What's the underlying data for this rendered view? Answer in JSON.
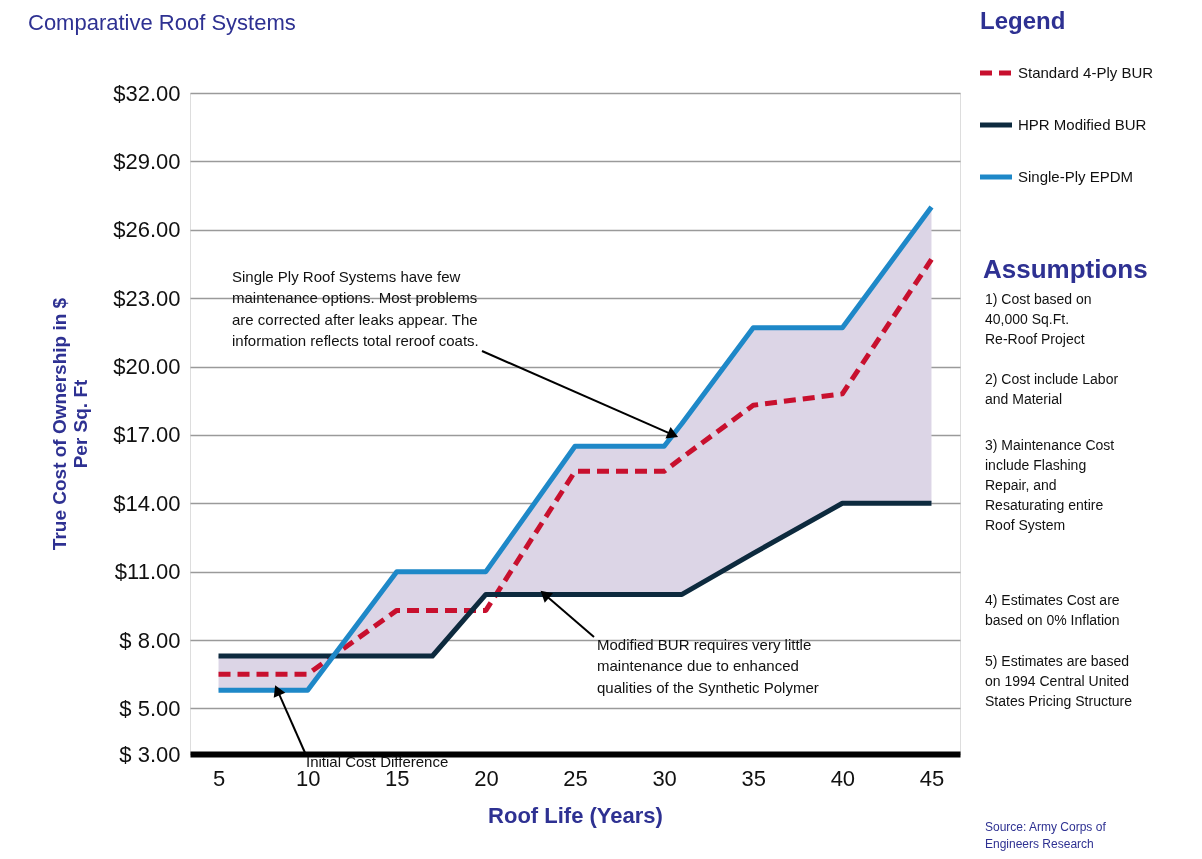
{
  "chart_data": {
    "type": "line",
    "title": "Comparative Roof Systems",
    "xlabel": "Roof Life (Years)",
    "ylabel": "True Cost of Ownership in $\nPer Sq. Ft",
    "legend_title": "Legend",
    "x": [
      5,
      10,
      15,
      17,
      20,
      25,
      30,
      31,
      35,
      40,
      45
    ],
    "series": [
      {
        "name": "Standard 4-Ply BUR",
        "color": "#c8102e",
        "line_style": "dashed",
        "values": [
          6.5,
          6.5,
          9.3,
          9.3,
          9.3,
          15.4,
          15.4,
          16.0,
          18.3,
          18.8,
          24.7
        ]
      },
      {
        "name": "HPR Modified BUR",
        "color": "#0d2a3e",
        "line_style": "solid",
        "values": [
          7.3,
          7.3,
          7.3,
          7.3,
          10,
          10,
          10,
          10,
          11.8,
          14,
          14
        ]
      },
      {
        "name": "Single-Ply EPDM",
        "color": "#1e88c8",
        "line_style": "solid",
        "values": [
          5.8,
          5.8,
          11,
          11,
          11,
          16.5,
          16.5,
          17.5,
          21.7,
          21.7,
          27
        ],
        "lower": [
          7.3,
          7.3,
          7.3,
          7.3,
          10,
          10,
          10,
          10,
          11.8,
          14,
          14
        ],
        "upper": [
          5.8,
          5.8,
          11,
          11,
          11,
          16.5,
          16.5,
          17.5,
          21.7,
          21.7,
          27
        ]
      }
    ],
    "xlim": [
      3.4,
      46.6
    ],
    "xticks": [
      5,
      10,
      15,
      20,
      25,
      30,
      35,
      40,
      45
    ],
    "ylim": [
      3,
      32
    ],
    "yticks": [
      {
        "value": 3,
        "label": "$ 3.00"
      },
      {
        "value": 5,
        "label": "$ 5.00"
      },
      {
        "value": 8,
        "label": "$ 8.00"
      },
      {
        "value": 11,
        "label": "$11.00"
      },
      {
        "value": 14,
        "label": "$14.00"
      },
      {
        "value": 17,
        "label": "$17.00"
      },
      {
        "value": 20,
        "label": "$20.00"
      },
      {
        "value": 23,
        "label": "$23.00"
      },
      {
        "value": 26,
        "label": "$26.00"
      },
      {
        "value": 29,
        "label": "$29.00"
      },
      {
        "value": 32,
        "label": "$32.00"
      }
    ],
    "grid": "y",
    "legend": "top right",
    "annotations": [
      {
        "text": "Single Ply Roof Systems have few\nmaintenance options. Most problems\nare corrected after leaks appear. The\ninformation reflects total reroof coats.",
        "x": 30.5,
        "y": 17.0
      },
      {
        "text": "Modified BUR requires very little\nmaintenance due to enhanced\nqualities of the Synthetic Polymer",
        "x": 23.3,
        "y": 10
      },
      {
        "text": "Initial Cost Difference",
        "x": 8.3,
        "y": 5.8
      },
      "Assumptions",
      "1) Cost based on\n40,000 Sq.Ft.\nRe-Roof Project",
      "2) Cost include Labor\nand Material",
      "3) Maintenance Cost\ninclude Flashing\nRepair, and\nResaturating entire\nRoof System",
      "4) Estimates Cost are\nbased on 0% Inflation",
      "5) Estimates are based\non 1994 Central United\nStates Pricing Structure",
      "Source: Army Corps of\nEngineers Research"
    ]
  }
}
